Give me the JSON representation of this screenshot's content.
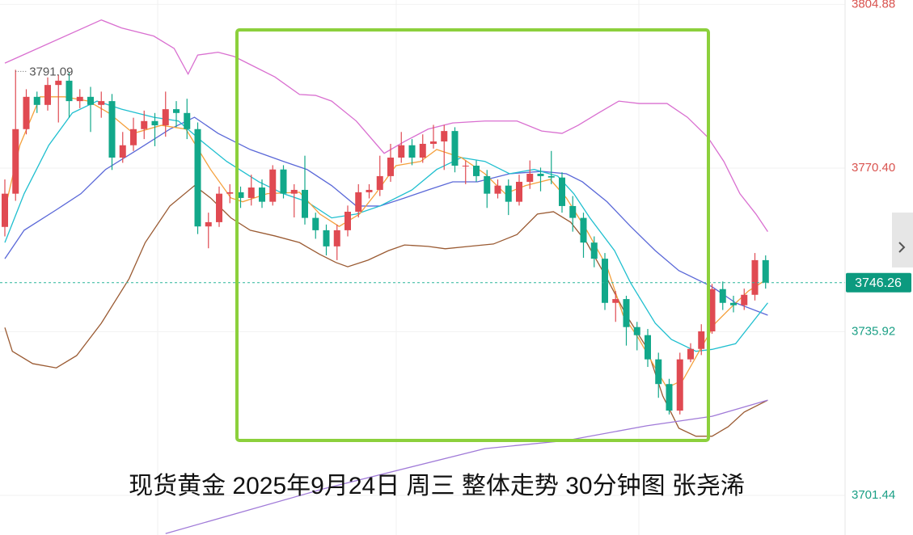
{
  "chart_data": {
    "type": "candlestick",
    "title": "现货黄金 2025年9月24日 周三 整体走势 30分钟图 张尧浠",
    "ylim": [
      3693.1,
      3805.8
    ],
    "yticks": [
      3701.44,
      3735.92,
      {
        "value": 3770.4,
        "label": "3770.40"
      },
      3804.88
    ],
    "grid": true,
    "up_color": "#e04a52",
    "down_color": "#12a88a",
    "open": [
      3758.0,
      3765.0,
      3778.6,
      3785.4,
      3783.7,
      3787.9,
      3788.8,
      3784.5,
      3785.4,
      3783.7,
      3784.5,
      3772.6,
      3775.2,
      3778.6,
      3780.3,
      3779.4,
      3782.8,
      3782.0,
      3778.6,
      3758.1,
      3759.0,
      3765.0,
      3765.3,
      3764.1,
      3766.3,
      3763.3,
      3770.1,
      3765.0,
      3765.8,
      3759.9,
      3757.3,
      3753.9,
      3757.3,
      3761.2,
      3765.3,
      3765.8,
      3768.7,
      3772.6,
      3775.2,
      3772.6,
      3775.5,
      3776.0,
      3778.2,
      3770.9,
      3770.9,
      3768.7,
      3765.0,
      3766.7,
      3763.3,
      3767.5,
      3769.2,
      3768.7,
      3768.4,
      3762.4,
      3759.9,
      3754.7,
      3751.3,
      3742.0,
      3742.8,
      3736.9,
      3735.2,
      3730.1,
      3724.9,
      3719.3,
      3730.1,
      3732.3,
      3736.0,
      3744.9,
      3742.0,
      3741.5,
      3743.7,
      3751.0
    ],
    "high": [
      3768.0,
      3791.09,
      3787.0,
      3786.5,
      3789.5,
      3790.0,
      3790.5,
      3787.0,
      3787.5,
      3786.5,
      3786.0,
      3778.0,
      3781.0,
      3782.5,
      3782.0,
      3786.5,
      3784.5,
      3785.0,
      3780.0,
      3761.0,
      3766.5,
      3767.0,
      3766.5,
      3769.0,
      3768.0,
      3771.0,
      3771.0,
      3767.0,
      3773.0,
      3761.0,
      3758.5,
      3758.5,
      3762.5,
      3767.0,
      3767.0,
      3773.0,
      3775.5,
      3778.0,
      3776.5,
      3777.5,
      3779.5,
      3779.5,
      3779.0,
      3772.0,
      3772.0,
      3770.0,
      3768.0,
      3768.0,
      3769.0,
      3772.0,
      3770.5,
      3774.0,
      3769.5,
      3764.5,
      3761.0,
      3756.0,
      3752.5,
      3744.5,
      3743.5,
      3738.0,
      3736.5,
      3731.5,
      3726.0,
      3731.5,
      3733.5,
      3737.5,
      3746.0,
      3746.5,
      3743.5,
      3745.0,
      3752.5,
      3752.0
    ],
    "low": [
      3756.0,
      3763.5,
      3777.5,
      3782.0,
      3782.5,
      3780.0,
      3781.0,
      3783.0,
      3778.0,
      3781.0,
      3770.0,
      3771.5,
      3774.0,
      3776.5,
      3775.0,
      3777.0,
      3779.0,
      3776.5,
      3756.5,
      3753.5,
      3758.0,
      3763.0,
      3762.0,
      3762.5,
      3762.0,
      3762.5,
      3764.0,
      3760.0,
      3758.5,
      3755.5,
      3752.0,
      3751.0,
      3756.0,
      3760.0,
      3764.0,
      3764.5,
      3767.5,
      3771.5,
      3771.0,
      3771.5,
      3774.5,
      3770.0,
      3769.5,
      3767.0,
      3767.5,
      3762.0,
      3764.0,
      3760.5,
      3762.5,
      3766.0,
      3765.5,
      3767.0,
      3761.0,
      3757.0,
      3751.5,
      3749.5,
      3740.5,
      3738.0,
      3733.0,
      3732.0,
      3728.5,
      3722.0,
      3718.5,
      3718.5,
      3729.5,
      3731.0,
      3735.5,
      3740.5,
      3740.0,
      3740.5,
      3742.5,
      3745.0
    ],
    "close": [
      3765.0,
      3778.6,
      3785.4,
      3783.7,
      3787.9,
      3788.8,
      3784.5,
      3785.4,
      3783.7,
      3784.5,
      3772.6,
      3775.2,
      3778.6,
      3780.3,
      3779.4,
      3782.8,
      3782.0,
      3778.6,
      3758.1,
      3759.0,
      3765.0,
      3765.3,
      3764.1,
      3766.3,
      3763.3,
      3770.1,
      3765.0,
      3765.8,
      3759.9,
      3757.3,
      3753.9,
      3757.3,
      3761.2,
      3765.3,
      3765.8,
      3768.7,
      3772.6,
      3775.2,
      3772.6,
      3775.5,
      3776.0,
      3778.2,
      3770.9,
      3770.9,
      3768.7,
      3765.0,
      3766.7,
      3763.3,
      3767.5,
      3769.2,
      3768.7,
      3768.4,
      3762.4,
      3759.9,
      3754.7,
      3751.3,
      3742.0,
      3742.8,
      3736.9,
      3735.2,
      3730.1,
      3724.9,
      3719.3,
      3730.1,
      3732.3,
      3736.0,
      3744.9,
      3742.0,
      3741.5,
      3743.7,
      3751.0,
      3746.26
    ],
    "indicators": [
      {
        "color": "#d96fd0",
        "x": [
          0,
          9.0,
          10.9,
          13.9,
          15.8,
          17.1,
          18.0,
          19.9,
          21.4,
          22.9,
          25.2,
          27.5,
          29.0,
          30.5,
          32.8,
          35.4,
          37.3,
          39.5,
          41.8,
          44.8,
          47.8,
          50.1,
          52.0,
          53.5,
          55.4,
          57.3,
          59.2,
          61.8,
          63.7,
          65.6,
          67.1,
          68.6,
          70.1,
          71.2
        ],
        "values": [
          3792.5,
          3801.6,
          3799.9,
          3798.2,
          3795.6,
          3790.2,
          3794.2,
          3794.8,
          3793.9,
          3792.2,
          3789.6,
          3785.9,
          3785.7,
          3784.5,
          3780.3,
          3773.5,
          3776.0,
          3778.6,
          3779.9,
          3780.3,
          3780.3,
          3778.2,
          3777.7,
          3779.4,
          3782.0,
          3784.5,
          3784.0,
          3784.0,
          3781.1,
          3776.9,
          3771.8,
          3765.0,
          3760.7,
          3757.0
        ]
      },
      {
        "color": "#9a5a32",
        "x": [
          0,
          0.7,
          2.6,
          4.8,
          6.7,
          9.0,
          11.6,
          13.1,
          15.4,
          17.7,
          19.2,
          21.1,
          22.9,
          25.2,
          27.5,
          29.4,
          30.9,
          32.0,
          33.9,
          35.8,
          37.3,
          39.5,
          41.1,
          43.3,
          45.6,
          47.8,
          49.7,
          51.2,
          52.8,
          54.3,
          56.2,
          58.0,
          59.9,
          61.4,
          62.9,
          64.5,
          66.0,
          67.5,
          69.0,
          71.2
        ],
        "values": [
          3736.8,
          3731.8,
          3729.2,
          3728.3,
          3730.9,
          3737.7,
          3747.1,
          3754.7,
          3762.4,
          3766.7,
          3764.1,
          3759.9,
          3757.3,
          3756.1,
          3754.7,
          3752.2,
          3750.5,
          3749.6,
          3751.0,
          3753.0,
          3754.2,
          3753.9,
          3753.4,
          3753.9,
          3754.4,
          3756.4,
          3760.7,
          3761.2,
          3759.0,
          3754.7,
          3747.1,
          3739.4,
          3732.6,
          3722.4,
          3715.6,
          3713.9,
          3713.9,
          3715.9,
          3719.0,
          3721.5
        ]
      },
      {
        "color": "#5a68d8",
        "x": [
          0,
          1.8,
          4.8,
          7.1,
          9.4,
          12.4,
          15.4,
          17.7,
          19.9,
          22.9,
          26.0,
          28.2,
          30.5,
          32.8,
          35.0,
          37.3,
          39.5,
          41.8,
          44.1,
          47.1,
          50.1,
          52.4,
          53.9,
          56.2,
          58.4,
          60.7,
          62.9,
          66.0,
          68.2,
          71.2
        ],
        "values": [
          3751.3,
          3757.3,
          3761.6,
          3765.0,
          3770.1,
          3774.3,
          3778.6,
          3781.1,
          3777.7,
          3774.3,
          3771.8,
          3770.1,
          3766.7,
          3762.4,
          3762.4,
          3764.1,
          3765.8,
          3767.5,
          3767.5,
          3769.2,
          3769.7,
          3769.2,
          3767.5,
          3763.3,
          3758.1,
          3753.0,
          3748.8,
          3745.4,
          3742.0,
          3739.4
        ]
      },
      {
        "color": "#1fbfcf",
        "x": [
          0,
          1.8,
          4.1,
          6.3,
          8.6,
          10.9,
          13.9,
          16.2,
          18.4,
          20.7,
          23.7,
          26.0,
          28.2,
          30.5,
          32.8,
          35.0,
          38.0,
          40.3,
          42.6,
          44.8,
          47.1,
          49.4,
          51.6,
          53.1,
          54.6,
          56.9,
          58.4,
          60.7,
          62.2,
          64.5,
          66.0,
          68.2,
          69.7,
          71.2
        ],
        "values": [
          3754.7,
          3765.0,
          3775.2,
          3782.0,
          3784.5,
          3782.8,
          3781.1,
          3780.3,
          3776.0,
          3771.8,
          3767.5,
          3765.0,
          3763.3,
          3759.9,
          3760.7,
          3762.4,
          3765.8,
          3770.1,
          3772.6,
          3771.8,
          3769.2,
          3770.1,
          3768.7,
          3765.0,
          3759.9,
          3753.0,
          3746.2,
          3737.7,
          3734.3,
          3731.8,
          3732.2,
          3733.4,
          3737.7,
          3742.0
        ]
      },
      {
        "color": "#f5a03c",
        "x": [
          0,
          1.4,
          3.3,
          5.6,
          7.8,
          9.7,
          12.0,
          14.6,
          16.9,
          19.2,
          21.1,
          22.2,
          24.5,
          27.5,
          29.4,
          31.2,
          33.1,
          34.6,
          36.5,
          38.8,
          40.3,
          42.6,
          44.8,
          46.7,
          48.6,
          50.9,
          52.4,
          54.3,
          56.2,
          57.7,
          59.2,
          60.7,
          61.8,
          63.3,
          64.8,
          66.3,
          67.8,
          69.4,
          71.2
        ],
        "values": [
          3761.6,
          3775.2,
          3785.4,
          3785.4,
          3784.5,
          3782.0,
          3777.7,
          3779.4,
          3778.6,
          3770.1,
          3764.1,
          3763.3,
          3765.0,
          3765.3,
          3760.7,
          3758.1,
          3760.7,
          3765.0,
          3770.9,
          3771.8,
          3774.3,
          3772.6,
          3769.2,
          3765.0,
          3766.7,
          3768.0,
          3764.1,
          3757.3,
          3749.6,
          3739.4,
          3734.3,
          3728.3,
          3724.1,
          3725.8,
          3731.8,
          3737.7,
          3741.1,
          3744.5,
          3747.1
        ]
      },
      {
        "color": "#a07ad8",
        "x": [
          15.0,
          29.7,
          44.8,
          52.4,
          59.9,
          66.0,
          71.2
        ],
        "values": [
          3693.4,
          3702.8,
          3711.3,
          3713.0,
          3716.1,
          3718.1,
          3721.5
        ]
      }
    ]
  }
}
